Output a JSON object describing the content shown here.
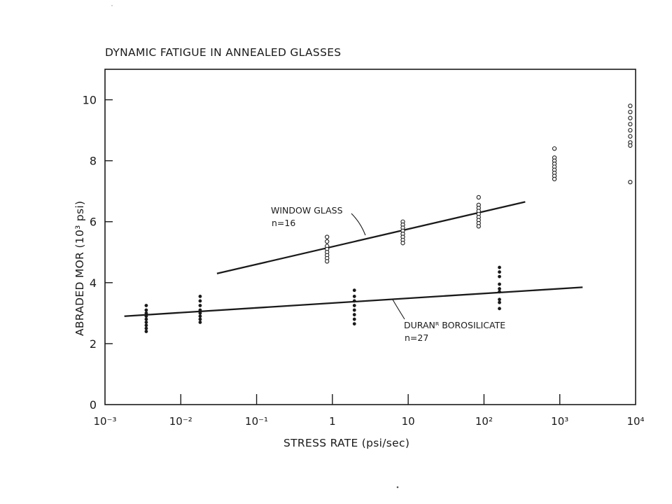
{
  "chart_data": {
    "type": "scatter",
    "title": "DYNAMIC FATIGUE IN ANNEALED GLASSES",
    "xlabel": "STRESS RATE (psi/sec)",
    "ylabel": "ABRADED MOR (10³ psi)",
    "xscale": "log",
    "xlim": [
      0.001,
      10000
    ],
    "ylim": [
      0,
      11
    ],
    "xticks": [
      {
        "value": 0.001,
        "label": "10⁻³"
      },
      {
        "value": 0.01,
        "label": "10⁻²"
      },
      {
        "value": 0.1,
        "label": "10⁻¹"
      },
      {
        "value": 1,
        "label": "1"
      },
      {
        "value": 10,
        "label": "10"
      },
      {
        "value": 100,
        "label": "10²"
      },
      {
        "value": 1000,
        "label": "10³"
      },
      {
        "value": 10000,
        "label": "10⁴"
      }
    ],
    "yticks": [
      {
        "value": 0,
        "label": "0"
      },
      {
        "value": 2,
        "label": "2"
      },
      {
        "value": 4,
        "label": "4"
      },
      {
        "value": 6,
        "label": "6"
      },
      {
        "value": 8,
        "label": "8"
      },
      {
        "value": 10,
        "label": "10"
      }
    ],
    "grid": false,
    "series": [
      {
        "name": "WINDOW GLASS",
        "note": "n=16",
        "marker": "open-circle",
        "points": [
          {
            "x": 0.85,
            "y": 5.5
          },
          {
            "x": 0.85,
            "y": 5.35
          },
          {
            "x": 0.85,
            "y": 5.2
          },
          {
            "x": 0.85,
            "y": 5.1
          },
          {
            "x": 0.85,
            "y": 5.0
          },
          {
            "x": 0.85,
            "y": 4.9
          },
          {
            "x": 0.85,
            "y": 4.8
          },
          {
            "x": 0.85,
            "y": 4.7
          },
          {
            "x": 8.5,
            "y": 6.0
          },
          {
            "x": 8.5,
            "y": 5.9
          },
          {
            "x": 8.5,
            "y": 5.8
          },
          {
            "x": 8.5,
            "y": 5.7
          },
          {
            "x": 8.5,
            "y": 5.6
          },
          {
            "x": 8.5,
            "y": 5.5
          },
          {
            "x": 8.5,
            "y": 5.4
          },
          {
            "x": 8.5,
            "y": 5.3
          },
          {
            "x": 85,
            "y": 6.8
          },
          {
            "x": 85,
            "y": 6.55
          },
          {
            "x": 85,
            "y": 6.45
          },
          {
            "x": 85,
            "y": 6.35
          },
          {
            "x": 85,
            "y": 6.25
          },
          {
            "x": 85,
            "y": 6.15
          },
          {
            "x": 85,
            "y": 6.05
          },
          {
            "x": 85,
            "y": 5.95
          },
          {
            "x": 85,
            "y": 5.85
          },
          {
            "x": 850,
            "y": 8.4
          },
          {
            "x": 850,
            "y": 8.1
          },
          {
            "x": 850,
            "y": 8.0
          },
          {
            "x": 850,
            "y": 7.9
          },
          {
            "x": 850,
            "y": 7.8
          },
          {
            "x": 850,
            "y": 7.7
          },
          {
            "x": 850,
            "y": 7.6
          },
          {
            "x": 850,
            "y": 7.5
          },
          {
            "x": 850,
            "y": 7.4
          },
          {
            "x": 8500,
            "y": 9.8
          },
          {
            "x": 8500,
            "y": 9.6
          },
          {
            "x": 8500,
            "y": 9.4
          },
          {
            "x": 8500,
            "y": 9.2
          },
          {
            "x": 8500,
            "y": 9.0
          },
          {
            "x": 8500,
            "y": 8.8
          },
          {
            "x": 8500,
            "y": 8.6
          },
          {
            "x": 8500,
            "y": 8.5
          },
          {
            "x": 8500,
            "y": 7.3
          }
        ],
        "fit_line": [
          {
            "x": 0.03,
            "y": 4.3
          },
          {
            "x": 350,
            "y": 6.65
          }
        ]
      },
      {
        "name": "DURANᴿ BOROSILICATE",
        "note": "n=27",
        "marker": "filled-dot",
        "points": [
          {
            "x": 0.0035,
            "y": 3.25
          },
          {
            "x": 0.0035,
            "y": 3.1
          },
          {
            "x": 0.0035,
            "y": 3.0
          },
          {
            "x": 0.0035,
            "y": 2.9
          },
          {
            "x": 0.0035,
            "y": 2.8
          },
          {
            "x": 0.0035,
            "y": 2.7
          },
          {
            "x": 0.0035,
            "y": 2.6
          },
          {
            "x": 0.0035,
            "y": 2.5
          },
          {
            "x": 0.0035,
            "y": 2.4
          },
          {
            "x": 0.018,
            "y": 3.55
          },
          {
            "x": 0.018,
            "y": 3.4
          },
          {
            "x": 0.018,
            "y": 3.25
          },
          {
            "x": 0.018,
            "y": 3.1
          },
          {
            "x": 0.018,
            "y": 3.0
          },
          {
            "x": 0.018,
            "y": 2.9
          },
          {
            "x": 0.018,
            "y": 2.8
          },
          {
            "x": 0.018,
            "y": 2.7
          },
          {
            "x": 1.95,
            "y": 3.75
          },
          {
            "x": 1.95,
            "y": 3.55
          },
          {
            "x": 1.95,
            "y": 3.4
          },
          {
            "x": 1.95,
            "y": 3.25
          },
          {
            "x": 1.95,
            "y": 3.1
          },
          {
            "x": 1.95,
            "y": 2.95
          },
          {
            "x": 1.95,
            "y": 2.8
          },
          {
            "x": 1.95,
            "y": 2.65
          },
          {
            "x": 160,
            "y": 4.5
          },
          {
            "x": 160,
            "y": 4.35
          },
          {
            "x": 160,
            "y": 4.2
          },
          {
            "x": 160,
            "y": 3.95
          },
          {
            "x": 160,
            "y": 3.8
          },
          {
            "x": 160,
            "y": 3.7
          },
          {
            "x": 160,
            "y": 3.45
          },
          {
            "x": 160,
            "y": 3.35
          },
          {
            "x": 160,
            "y": 3.15
          }
        ],
        "fit_line": [
          {
            "x": 0.0018,
            "y": 2.9
          },
          {
            "x": 2000,
            "y": 3.85
          }
        ]
      }
    ]
  }
}
